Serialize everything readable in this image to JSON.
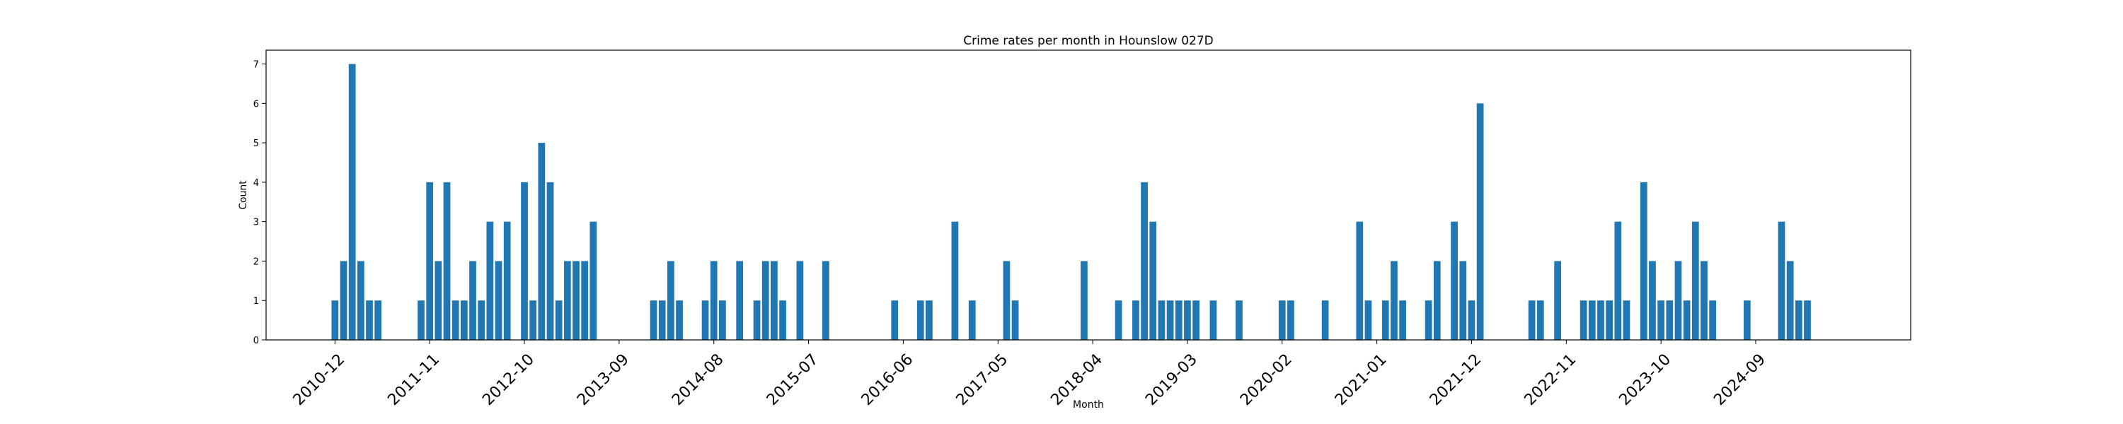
{
  "chart_data": {
    "type": "bar",
    "title": "Crime rates per month in Hounslow 027D",
    "xlabel": "Month",
    "ylabel": "Count",
    "ylim": [
      0,
      7.35
    ],
    "yticks": [
      0,
      1,
      2,
      3,
      4,
      5,
      6,
      7
    ],
    "xticks": [
      "2010-12",
      "2011-11",
      "2012-10",
      "2013-09",
      "2014-08",
      "2015-07",
      "2016-06",
      "2017-05",
      "2018-04",
      "2019-03",
      "2020-02",
      "2021-01",
      "2021-12",
      "2022-11",
      "2023-10",
      "2024-09"
    ],
    "xlim": [
      "2010-04",
      "2026-03"
    ],
    "grid": false,
    "color": "#1f77b4",
    "series": [
      {
        "x": [
          "2010-12",
          "2011-01",
          "2011-02",
          "2011-03",
          "2011-04",
          "2011-05",
          "2011-10",
          "2011-11",
          "2011-12",
          "2012-01",
          "2012-02",
          "2012-03",
          "2012-04",
          "2012-05",
          "2012-06",
          "2012-07",
          "2012-08",
          "2012-10",
          "2012-11",
          "2012-12",
          "2013-01",
          "2013-02",
          "2013-03",
          "2013-04",
          "2013-05",
          "2013-06",
          "2014-01",
          "2014-02",
          "2014-03",
          "2014-04",
          "2014-07",
          "2014-08",
          "2014-09",
          "2014-11",
          "2015-01",
          "2015-02",
          "2015-03",
          "2015-04",
          "2015-06",
          "2015-09",
          "2016-05",
          "2016-08",
          "2016-09",
          "2016-12",
          "2017-02",
          "2017-06",
          "2017-07",
          "2018-03",
          "2018-07",
          "2018-09",
          "2018-10",
          "2018-11",
          "2018-12",
          "2019-01",
          "2019-02",
          "2019-03",
          "2019-04",
          "2019-06",
          "2019-09",
          "2020-02",
          "2020-03",
          "2020-07",
          "2020-11",
          "2020-12",
          "2021-02",
          "2021-03",
          "2021-04",
          "2021-07",
          "2021-08",
          "2021-10",
          "2021-11",
          "2021-12",
          "2022-01",
          "2022-07",
          "2022-08",
          "2022-10",
          "2023-01",
          "2023-02",
          "2023-03",
          "2023-04",
          "2023-05",
          "2023-06",
          "2023-08",
          "2023-09",
          "2023-10",
          "2023-11",
          "2023-12",
          "2024-01",
          "2024-02",
          "2024-03",
          "2024-04",
          "2024-08",
          "2024-12",
          "2025-01",
          "2025-02",
          "2025-03"
        ],
        "values": [
          1,
          2,
          7,
          2,
          1,
          1,
          1,
          4,
          2,
          4,
          1,
          1,
          2,
          1,
          3,
          2,
          3,
          4,
          1,
          5,
          4,
          1,
          2,
          2,
          2,
          3,
          1,
          1,
          2,
          1,
          1,
          2,
          1,
          2,
          1,
          2,
          2,
          1,
          2,
          2,
          1,
          1,
          1,
          3,
          1,
          2,
          1,
          2,
          1,
          1,
          4,
          3,
          1,
          1,
          1,
          1,
          1,
          1,
          1,
          1,
          1,
          1,
          3,
          1,
          1,
          2,
          1,
          1,
          2,
          3,
          2,
          1,
          6,
          1,
          1,
          2,
          1,
          1,
          1,
          1,
          3,
          1,
          4,
          2,
          1,
          1,
          2,
          1,
          3,
          2,
          1,
          1,
          3,
          2,
          1,
          1
        ]
      }
    ]
  }
}
